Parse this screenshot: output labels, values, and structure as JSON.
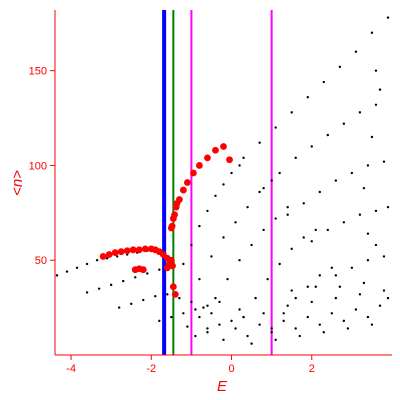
{
  "chart_data": {
    "type": "scatter",
    "xlabel": "E",
    "ylabel": "<n>",
    "xlim": [
      -4.4,
      4.0
    ],
    "ylim": [
      0,
      182
    ],
    "xticks": [
      -4,
      -2,
      0,
      2
    ],
    "yticks": [
      50,
      100,
      150
    ],
    "xtick_labels": [
      "-4",
      "-2",
      "0",
      "2"
    ],
    "ytick_labels": [
      "50",
      "100",
      "150"
    ],
    "grid": false,
    "vlines": [
      {
        "x": -1.68,
        "color": "#0000ff"
      },
      {
        "x": -1.45,
        "color": "#008000"
      },
      {
        "x": -1.0,
        "color": "#ff00ff"
      },
      {
        "x": 1.0,
        "color": "#ff00ff"
      }
    ],
    "series": [
      {
        "color": "#ff0000",
        "marker": "large-dot",
        "points": [
          [
            -3.2,
            52
          ],
          [
            -3.05,
            53
          ],
          [
            -2.9,
            54
          ],
          [
            -2.75,
            54.5
          ],
          [
            -2.6,
            55
          ],
          [
            -2.45,
            55.5
          ],
          [
            -2.3,
            55.5
          ],
          [
            -2.15,
            56
          ],
          [
            -2.0,
            56
          ],
          [
            -1.9,
            55.5
          ],
          [
            -1.8,
            54.5
          ],
          [
            -1.7,
            53
          ],
          [
            -1.6,
            51
          ],
          [
            -1.5,
            49
          ],
          [
            -1.47,
            47
          ],
          [
            -1.45,
            36
          ],
          [
            -1.4,
            32
          ],
          [
            -1.5,
            67
          ],
          [
            -1.45,
            72
          ],
          [
            -1.38,
            78
          ],
          [
            -1.3,
            82
          ],
          [
            -1.2,
            87
          ],
          [
            -1.1,
            91
          ],
          [
            -0.95,
            96
          ],
          [
            -0.8,
            100
          ],
          [
            -0.6,
            104
          ],
          [
            -0.4,
            108
          ],
          [
            -0.2,
            110
          ],
          [
            -0.05,
            103
          ],
          [
            -2.4,
            45
          ],
          [
            -2.3,
            45.5
          ],
          [
            -2.2,
            45
          ],
          [
            -1.6,
            46
          ],
          [
            -1.55,
            48
          ],
          [
            -1.5,
            50
          ],
          [
            -1.48,
            68
          ],
          [
            -1.42,
            74
          ],
          [
            -1.36,
            80
          ]
        ]
      },
      {
        "color": "#000000",
        "marker": "dot",
        "points": [
          [
            -4.35,
            42
          ],
          [
            -4.1,
            44
          ],
          [
            -3.85,
            46
          ],
          [
            -3.6,
            48
          ],
          [
            -3.35,
            50
          ],
          [
            -3.1,
            51
          ],
          [
            -2.85,
            52
          ],
          [
            -2.6,
            53
          ],
          [
            -2.35,
            54
          ],
          [
            -2.1,
            55
          ],
          [
            -3.6,
            33
          ],
          [
            -3.3,
            35
          ],
          [
            -3.0,
            37
          ],
          [
            -2.7,
            39
          ],
          [
            -2.4,
            41
          ],
          [
            -2.1,
            43
          ],
          [
            -1.8,
            45
          ],
          [
            -1.5,
            47
          ],
          [
            -2.8,
            25
          ],
          [
            -2.5,
            27
          ],
          [
            -2.2,
            29
          ],
          [
            -1.9,
            31
          ],
          [
            -1.6,
            32
          ],
          [
            -1.3,
            30
          ],
          [
            -1.0,
            28
          ],
          [
            -0.7,
            25
          ],
          [
            -1.8,
            18
          ],
          [
            -1.5,
            20
          ],
          [
            -1.2,
            22
          ],
          [
            -0.9,
            24
          ],
          [
            -0.6,
            26
          ],
          [
            -0.3,
            28
          ],
          [
            -0.9,
            10
          ],
          [
            -0.6,
            14
          ],
          [
            -0.3,
            16
          ],
          [
            0.0,
            18
          ],
          [
            0.3,
            20
          ],
          [
            -1.2,
            48
          ],
          [
            -1.0,
            58
          ],
          [
            -0.8,
            68
          ],
          [
            -0.6,
            76
          ],
          [
            -0.4,
            84
          ],
          [
            -0.2,
            90
          ],
          [
            0.0,
            96
          ],
          [
            0.2,
            100
          ],
          [
            -0.8,
            40
          ],
          [
            -0.5,
            52
          ],
          [
            -0.2,
            62
          ],
          [
            0.1,
            70
          ],
          [
            0.4,
            78
          ],
          [
            0.7,
            86
          ],
          [
            1.0,
            92
          ],
          [
            -0.4,
            30
          ],
          [
            -0.1,
            40
          ],
          [
            0.2,
            50
          ],
          [
            0.5,
            58
          ],
          [
            0.8,
            66
          ],
          [
            1.1,
            72
          ],
          [
            1.4,
            78
          ],
          [
            0.3,
            20
          ],
          [
            0.6,
            30
          ],
          [
            0.9,
            40
          ],
          [
            1.2,
            48
          ],
          [
            1.5,
            56
          ],
          [
            1.8,
            62
          ],
          [
            2.1,
            66
          ],
          [
            1.0,
            14
          ],
          [
            1.3,
            22
          ],
          [
            1.6,
            30
          ],
          [
            1.9,
            36
          ],
          [
            2.2,
            42
          ],
          [
            2.5,
            46
          ],
          [
            0.3,
            104
          ],
          [
            0.7,
            112
          ],
          [
            1.1,
            120
          ],
          [
            1.5,
            128
          ],
          [
            1.9,
            136
          ],
          [
            2.3,
            144
          ],
          [
            2.7,
            152
          ],
          [
            3.1,
            160
          ],
          [
            3.5,
            170
          ],
          [
            3.9,
            178
          ],
          [
            0.8,
            88
          ],
          [
            1.2,
            96
          ],
          [
            1.6,
            104
          ],
          [
            2.0,
            110
          ],
          [
            2.4,
            116
          ],
          [
            2.8,
            122
          ],
          [
            3.2,
            128
          ],
          [
            3.6,
            132
          ],
          [
            1.4,
            74
          ],
          [
            1.8,
            80
          ],
          [
            2.2,
            86
          ],
          [
            2.6,
            92
          ],
          [
            3.0,
            96
          ],
          [
            3.4,
            100
          ],
          [
            3.8,
            102
          ],
          [
            2.0,
            60
          ],
          [
            2.4,
            66
          ],
          [
            2.8,
            70
          ],
          [
            3.2,
            74
          ],
          [
            3.6,
            76
          ],
          [
            3.9,
            78
          ],
          [
            2.6,
            42
          ],
          [
            3.0,
            46
          ],
          [
            3.4,
            50
          ],
          [
            3.8,
            52
          ],
          [
            3.6,
            150
          ],
          [
            3.7,
            140
          ],
          [
            3.5,
            115
          ],
          [
            3.3,
            88
          ],
          [
            3.4,
            64
          ],
          [
            3.6,
            58
          ],
          [
            -0.6,
            12
          ],
          [
            -0.2,
            8
          ],
          [
            0.1,
            14
          ],
          [
            0.4,
            10
          ],
          [
            0.7,
            16
          ],
          [
            1.0,
            12
          ],
          [
            1.3,
            18
          ],
          [
            1.6,
            14
          ],
          [
            1.9,
            20
          ],
          [
            2.2,
            16
          ],
          [
            2.5,
            22
          ],
          [
            2.8,
            18
          ],
          [
            3.1,
            24
          ],
          [
            3.4,
            20
          ],
          [
            3.7,
            26
          ],
          [
            0.2,
            24
          ],
          [
            0.5,
            6
          ],
          [
            0.8,
            22
          ],
          [
            1.1,
            8
          ],
          [
            1.4,
            26
          ],
          [
            1.7,
            10
          ],
          [
            2.0,
            28
          ],
          [
            2.3,
            12
          ],
          [
            2.6,
            30
          ],
          [
            2.9,
            14
          ],
          [
            3.2,
            32
          ],
          [
            3.5,
            16
          ],
          [
            3.8,
            34
          ],
          [
            -1.1,
            15
          ],
          [
            -0.8,
            20
          ],
          [
            -0.5,
            22
          ],
          [
            1.5,
            34
          ],
          [
            2.1,
            36
          ],
          [
            2.7,
            36
          ],
          [
            3.3,
            38
          ],
          [
            3.9,
            30
          ]
        ]
      }
    ]
  }
}
